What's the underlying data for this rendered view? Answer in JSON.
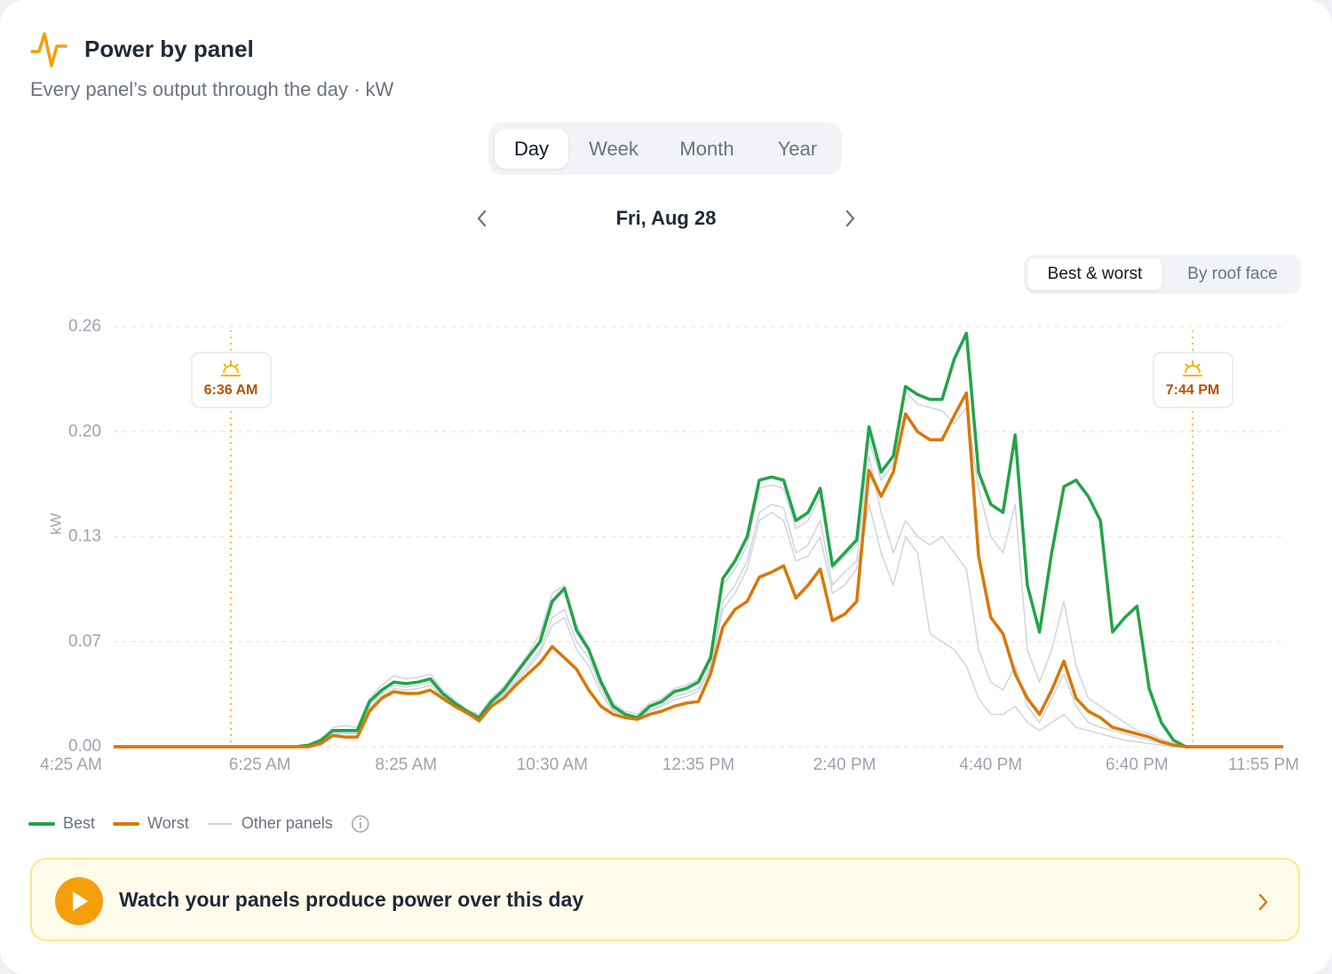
{
  "header": {
    "title": "Power by panel",
    "subtitle": "Every panel’s output through the day · kW"
  },
  "tabs": [
    "Day",
    "Week",
    "Month",
    "Year"
  ],
  "date": "Fri, Aug 28",
  "view_toggle": [
    "Best & worst",
    "By roof face"
  ],
  "chart_data": {
    "type": "line",
    "y_label": "kW",
    "categories": [
      "4:25 AM",
      null,
      null,
      null,
      null,
      null,
      null,
      null,
      null,
      null,
      null,
      null,
      "6:25 AM",
      null,
      null,
      null,
      null,
      null,
      null,
      null,
      null,
      null,
      null,
      null,
      "8:25 AM",
      null,
      null,
      null,
      null,
      null,
      null,
      null,
      null,
      null,
      null,
      null,
      "10:30 AM",
      null,
      null,
      null,
      null,
      null,
      null,
      null,
      null,
      null,
      null,
      null,
      "12:35 PM",
      null,
      null,
      null,
      null,
      null,
      null,
      null,
      null,
      null,
      null,
      null,
      "2:40 PM",
      null,
      null,
      null,
      null,
      null,
      null,
      null,
      null,
      null,
      null,
      null,
      "4:40 PM",
      null,
      null,
      null,
      null,
      null,
      null,
      null,
      null,
      null,
      null,
      null,
      "6:40 PM",
      null,
      null,
      null,
      null,
      null,
      null,
      null,
      null,
      null,
      null,
      null,
      "11:55 PM"
    ],
    "ylim": [
      0,
      0.26
    ],
    "yticks": [
      {
        "value": 0,
        "label": "0.00"
      },
      {
        "value": 0.065,
        "label": "0.07"
      },
      0.13,
      {
        "value": 0.195,
        "label": "0.20"
      },
      0.26
    ],
    "grid": true,
    "annotations": [
      {
        "label": "6:36 AM"
      },
      {
        "label": "7:44 PM"
      }
    ],
    "series": [
      {
        "name": "Best",
        "color": "#22a447",
        "values": [
          0,
          0,
          0,
          0,
          0,
          0,
          0,
          0,
          0,
          0,
          0,
          0,
          0,
          0,
          0,
          0,
          0.001,
          0.004,
          0.01,
          0.01,
          0.01,
          0.028,
          0.035,
          0.04,
          0.039,
          0.04,
          0.042,
          0.033,
          0.027,
          0.022,
          0.018,
          0.028,
          0.035,
          0.045,
          0.055,
          0.065,
          0.09,
          0.098,
          0.072,
          0.06,
          0.04,
          0.025,
          0.02,
          0.018,
          0.025,
          0.028,
          0.034,
          0.036,
          0.04,
          0.055,
          0.104,
          0.115,
          0.13,
          0.165,
          0.167,
          0.165,
          0.14,
          0.145,
          0.16,
          0.112,
          0.12,
          0.128,
          0.198,
          0.17,
          0.18,
          0.223,
          0.218,
          0.215,
          0.215,
          0.24,
          0.256,
          0.17,
          0.15,
          0.145,
          0.193,
          0.1,
          0.071,
          0.12,
          0.161,
          0.165,
          0.155,
          0.14,
          0.071,
          0.08,
          0.087,
          0.036,
          0.015,
          0.004,
          0,
          0,
          0,
          0,
          0,
          0,
          0,
          0,
          0
        ]
      },
      {
        "name": "Worst",
        "color": "#d97706",
        "values": [
          0,
          0,
          0,
          0,
          0,
          0,
          0,
          0,
          0,
          0,
          0,
          0,
          0,
          0,
          0,
          0,
          0,
          0.002,
          0.007,
          0.006,
          0.006,
          0.022,
          0.03,
          0.034,
          0.033,
          0.033,
          0.035,
          0.03,
          0.025,
          0.021,
          0.016,
          0.025,
          0.03,
          0.038,
          0.045,
          0.052,
          0.062,
          0.055,
          0.048,
          0.035,
          0.025,
          0.02,
          0.018,
          0.017,
          0.02,
          0.022,
          0.025,
          0.027,
          0.028,
          0.045,
          0.074,
          0.085,
          0.09,
          0.105,
          0.108,
          0.112,
          0.092,
          0.1,
          0.11,
          0.078,
          0.082,
          0.09,
          0.171,
          0.155,
          0.17,
          0.206,
          0.195,
          0.19,
          0.19,
          0.205,
          0.219,
          0.118,
          0.08,
          0.07,
          0.045,
          0.03,
          0.02,
          0.035,
          0.053,
          0.03,
          0.022,
          0.018,
          0.012,
          0.01,
          0.008,
          0.006,
          0.003,
          0.001,
          0,
          0,
          0,
          0,
          0,
          0,
          0,
          0,
          0
        ]
      },
      {
        "name": "Other panels",
        "color": "#cdd5e0",
        "panels": [
          [
            0,
            0,
            0,
            0,
            0,
            0,
            0,
            0,
            0,
            0,
            0,
            0,
            0,
            0,
            0,
            0,
            0.001,
            0.004,
            0.012,
            0.013,
            0.012,
            0.03,
            0.038,
            0.044,
            0.042,
            0.043,
            0.045,
            0.035,
            0.029,
            0.023,
            0.02,
            0.03,
            0.037,
            0.047,
            0.057,
            0.07,
            0.095,
            0.1,
            0.075,
            0.062,
            0.042,
            0.027,
            0.022,
            0.02,
            0.027,
            0.03,
            0.036,
            0.038,
            0.042,
            0.057,
            0.1,
            0.11,
            0.125,
            0.16,
            0.162,
            0.16,
            0.135,
            0.14,
            0.155,
            0.11,
            0.118,
            0.125,
            0.19,
            0.165,
            0.175,
            0.22,
            0.212,
            0.21,
            0.208,
            0.2,
            0.21,
            0.16,
            0.13,
            0.12,
            0.15,
            0.06,
            0.04,
            0.06,
            0.09,
            0.05,
            0.03,
            0.025,
            0.02,
            0.015,
            0.01,
            0.008,
            0.005,
            0.002,
            0,
            0,
            0,
            0,
            0,
            0,
            0,
            0,
            0
          ],
          [
            0,
            0,
            0,
            0,
            0,
            0,
            0,
            0,
            0,
            0,
            0,
            0,
            0,
            0,
            0,
            0,
            0.001,
            0.003,
            0.009,
            0.009,
            0.009,
            0.026,
            0.033,
            0.038,
            0.037,
            0.038,
            0.04,
            0.032,
            0.026,
            0.021,
            0.017,
            0.027,
            0.033,
            0.042,
            0.05,
            0.06,
            0.08,
            0.085,
            0.065,
            0.055,
            0.036,
            0.023,
            0.019,
            0.018,
            0.023,
            0.026,
            0.031,
            0.033,
            0.036,
            0.05,
            0.09,
            0.1,
            0.115,
            0.145,
            0.15,
            0.148,
            0.12,
            0.125,
            0.14,
            0.1,
            0.108,
            0.115,
            0.18,
            0.145,
            0.12,
            0.14,
            0.13,
            0.125,
            0.13,
            0.12,
            0.11,
            0.06,
            0.04,
            0.035,
            0.05,
            0.025,
            0.015,
            0.03,
            0.045,
            0.025,
            0.015,
            0.012,
            0.01,
            0.008,
            0.006,
            0.004,
            0.002,
            0.001,
            0,
            0,
            0,
            0,
            0,
            0,
            0,
            0,
            0
          ],
          [
            0,
            0,
            0,
            0,
            0,
            0,
            0,
            0,
            0,
            0,
            0,
            0,
            0,
            0,
            0,
            0,
            0.001,
            0.003,
            0.008,
            0.008,
            0.008,
            0.024,
            0.031,
            0.036,
            0.035,
            0.036,
            0.038,
            0.031,
            0.025,
            0.02,
            0.017,
            0.026,
            0.032,
            0.04,
            0.048,
            0.058,
            0.075,
            0.08,
            0.06,
            0.05,
            0.033,
            0.022,
            0.019,
            0.018,
            0.022,
            0.025,
            0.029,
            0.031,
            0.034,
            0.048,
            0.085,
            0.095,
            0.11,
            0.14,
            0.145,
            0.14,
            0.115,
            0.118,
            0.13,
            0.095,
            0.1,
            0.11,
            0.15,
            0.12,
            0.1,
            0.13,
            0.12,
            0.07,
            0.065,
            0.06,
            0.05,
            0.03,
            0.02,
            0.02,
            0.025,
            0.015,
            0.01,
            0.015,
            0.02,
            0.012,
            0.01,
            0.008,
            0.006,
            0.004,
            0.003,
            0.002,
            0.001,
            0,
            0,
            0,
            0,
            0,
            0,
            0,
            0,
            0,
            0
          ]
        ]
      }
    ]
  },
  "banner": "Watch your panels produce power over this day"
}
